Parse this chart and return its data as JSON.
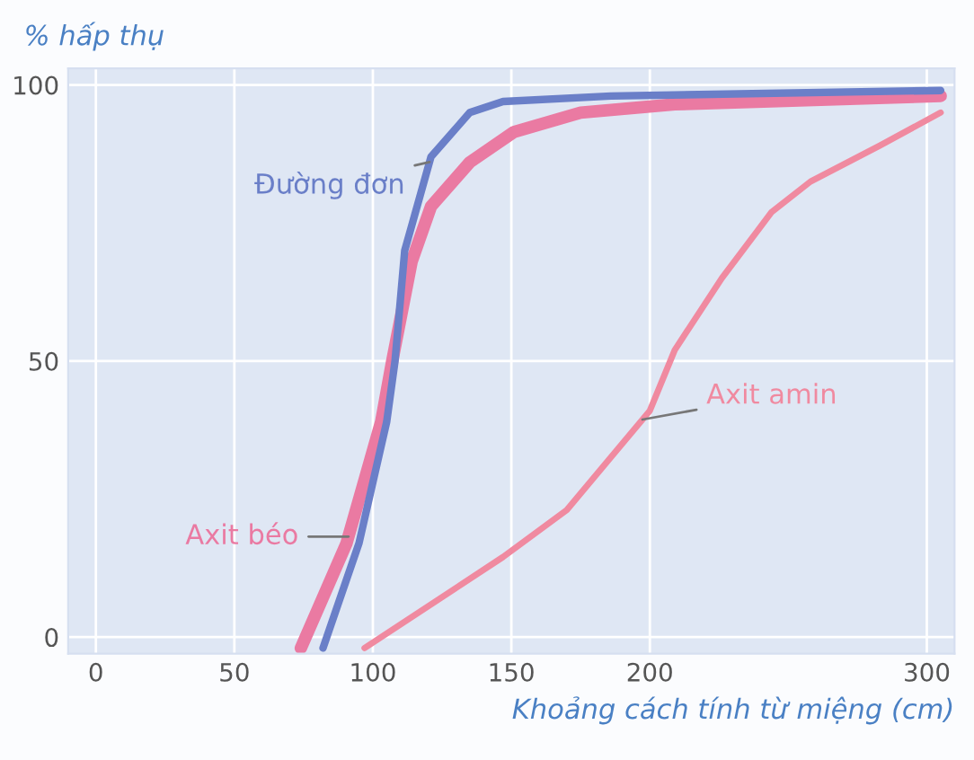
{
  "chart_data": {
    "type": "line",
    "ylabel": "% hấp thụ",
    "xlabel": "Khoảng cách tính từ miệng (cm)",
    "xlim": [
      -10,
      310
    ],
    "xticks": [
      0,
      50,
      100,
      150,
      200,
      300
    ],
    "ylim": [
      -3,
      103
    ],
    "yticks": [
      0,
      50,
      100
    ],
    "grid": true,
    "legend": false,
    "series": [
      {
        "name": "Đường đơn",
        "color": "#6a7fc8",
        "x": [
          82,
          95,
          105,
          108,
          111.5,
          121,
          135,
          147,
          186,
          305
        ],
        "values": [
          -2,
          17,
          39,
          50,
          70,
          87,
          95,
          97,
          98,
          99
        ]
      },
      {
        "name": "Axit béo",
        "color": "#ea7aa2",
        "x": [
          74,
          90.5,
          103,
          107,
          114,
          121,
          135,
          151,
          175,
          209,
          305
        ],
        "values": [
          -2,
          17,
          39,
          50,
          68,
          78,
          86,
          91.5,
          95,
          96.5,
          98
        ]
      },
      {
        "name": "Axit amin",
        "color": "#f08aa0",
        "x": [
          97,
          147,
          170,
          200,
          209,
          226,
          244,
          258,
          283,
          305
        ],
        "values": [
          -2,
          14.5,
          23,
          41,
          52,
          65,
          77,
          82.5,
          89,
          95
        ]
      }
    ]
  }
}
